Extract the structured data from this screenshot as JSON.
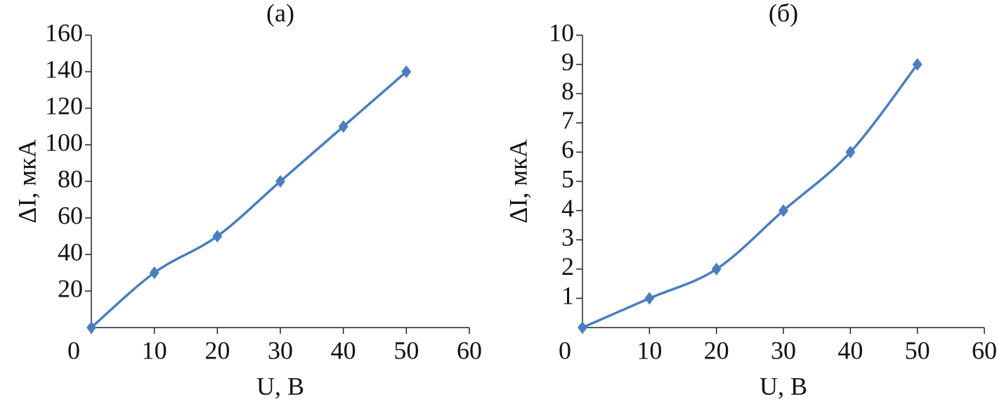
{
  "chart_data": [
    {
      "type": "line",
      "title": "(а)",
      "xlabel": "U, В",
      "ylabel": "ΔI, мкА",
      "x": [
        0,
        10,
        20,
        30,
        40,
        50
      ],
      "values": [
        0,
        30,
        50,
        80,
        110,
        140
      ],
      "color": "#4a7ebf",
      "xlim": [
        0,
        60
      ],
      "xticks": [
        0,
        10,
        20,
        30,
        40,
        50,
        60
      ],
      "ylim": [
        0,
        160
      ],
      "yticks": [
        20,
        40,
        60,
        80,
        100,
        120,
        140,
        160
      ]
    },
    {
      "type": "line",
      "title": "(б)",
      "xlabel": "U, В",
      "ylabel": "ΔI, мкА",
      "x": [
        0,
        10,
        20,
        30,
        40,
        50
      ],
      "values": [
        0,
        1,
        2,
        4,
        6,
        9
      ],
      "color": "#4a7ebf",
      "xlim": [
        0,
        60
      ],
      "xticks": [
        0,
        10,
        20,
        30,
        40,
        50,
        60
      ],
      "ylim": [
        0,
        10
      ],
      "yticks": [
        1,
        2,
        3,
        4,
        5,
        6,
        7,
        8,
        9,
        10
      ]
    }
  ]
}
